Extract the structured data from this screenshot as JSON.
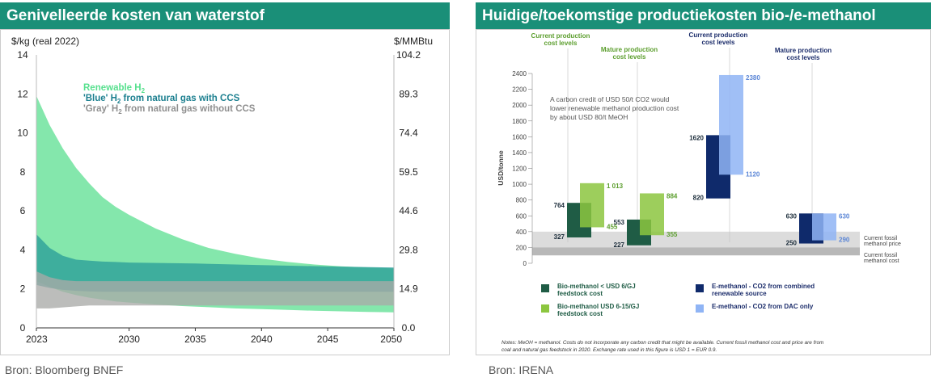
{
  "left_panel": {
    "title": "Genivelleerde kosten van waterstof",
    "source": "Bron: Bloomberg BNEF"
  },
  "right_panel": {
    "title": "Huidige/toekomstige productiekosten bio-/e-methanol",
    "source": "Bron: IRENA"
  },
  "chart_data": [
    {
      "type": "area",
      "title": "Genivelleerde kosten van waterstof",
      "ylabel_left": "$/kg (real 2022)",
      "ylabel_right": "$/MMBtu",
      "ylim": [
        0,
        14
      ],
      "y_ticks_left": [
        "0",
        "2",
        "4",
        "6",
        "8",
        "10",
        "12",
        "14"
      ],
      "y_ticks_right": [
        "0.0",
        "14.9",
        "29.8",
        "44.6",
        "59.5",
        "74.4",
        "89.3",
        "104.2"
      ],
      "x_ticks": [
        "2023",
        "2030",
        "2035",
        "2040",
        "2045",
        "2050"
      ],
      "xlim": [
        2023,
        2050
      ],
      "legend": [
        {
          "label_pre": "Renewable H",
          "sub": "2",
          "label_post": "",
          "color": "#57e08e"
        },
        {
          "label_pre": "'Blue' H",
          "sub": "2",
          "label_post": " from natural gas with CCS",
          "color": "#1b7f8f"
        },
        {
          "label_pre": "'Gray' H",
          "sub": "2",
          "label_post": " from natural gas without CCS",
          "color": "#8f8f8f"
        }
      ],
      "series": [
        {
          "name": "Renewable H2",
          "color": "#6fe39d",
          "x": [
            2023,
            2024,
            2025,
            2026,
            2027,
            2028,
            2029,
            2030,
            2032,
            2034,
            2036,
            2038,
            2040,
            2042,
            2044,
            2046,
            2048,
            2050
          ],
          "high": [
            11.9,
            10.4,
            9.2,
            8.2,
            7.4,
            6.7,
            6.2,
            5.8,
            5.1,
            4.55,
            4.1,
            3.8,
            3.55,
            3.38,
            3.25,
            3.16,
            3.1,
            3.05
          ],
          "low": [
            2.4,
            2.1,
            1.85,
            1.68,
            1.55,
            1.45,
            1.36,
            1.3,
            1.2,
            1.12,
            1.06,
            1.0,
            0.96,
            0.92,
            0.88,
            0.85,
            0.82,
            0.8
          ]
        },
        {
          "name": "'Blue' H2 from natural gas with CCS",
          "color": "#2a9e99",
          "x": [
            2023,
            2024,
            2025,
            2026,
            2027,
            2028,
            2029,
            2030,
            2035,
            2040,
            2045,
            2050
          ],
          "high": [
            4.8,
            4.1,
            3.7,
            3.5,
            3.45,
            3.4,
            3.38,
            3.35,
            3.3,
            3.22,
            3.15,
            3.1
          ],
          "low": [
            2.2,
            2.05,
            1.95,
            1.9,
            1.87,
            1.85,
            1.85,
            1.85,
            1.85,
            1.85,
            1.85,
            1.85
          ]
        },
        {
          "name": "'Gray' H2 from natural gas without CCS",
          "color": "#a9aaa8",
          "x": [
            2023,
            2024,
            2025,
            2026,
            2027,
            2028,
            2029,
            2030,
            2035,
            2040,
            2045,
            2050
          ],
          "high": [
            2.9,
            2.6,
            2.45,
            2.4,
            2.4,
            2.4,
            2.4,
            2.4,
            2.4,
            2.4,
            2.4,
            2.4
          ],
          "low": [
            1.0,
            1.0,
            1.05,
            1.1,
            1.15,
            1.15,
            1.15,
            1.15,
            1.15,
            1.15,
            1.15,
            1.15
          ]
        }
      ]
    },
    {
      "type": "bar",
      "title": "Huidige/toekomstige productiekosten bio-/e-methanol",
      "ylabel": "USD/tonne",
      "ylim": [
        0,
        2400
      ],
      "y_ticks": [
        "0",
        "200",
        "400",
        "600",
        "800",
        "1000",
        "1200",
        "1400",
        "1600",
        "1800",
        "2000",
        "2200",
        "2400"
      ],
      "group_labels": [
        {
          "text": [
            "Current production",
            "cost levels"
          ]
        },
        {
          "text": [
            "Mature production",
            "cost levels"
          ]
        },
        {
          "text": [
            "Current production",
            "cost levels"
          ]
        },
        {
          "text": [
            "Mature production",
            "cost levels"
          ]
        }
      ],
      "note_text": [
        "A carbon credit of USD 50/t CO2 would",
        "lower renewable methanol production cost",
        "by about USD 80/t MeOH"
      ],
      "ranges": [
        {
          "series": "Bio-methanol < USD 6/GJ feedstock cost",
          "group": "bio-current",
          "low": 327,
          "high": 764,
          "low_label": "327",
          "high_label": "764",
          "color": "#1f5c45"
        },
        {
          "series": "Bio-methanol USD 6-15/GJ feedstock cost",
          "group": "bio-current",
          "low": 455,
          "high": 1013,
          "low_label": "455",
          "high_label": "1 013",
          "color": "#8cc63f"
        },
        {
          "series": "Bio-methanol < USD 6/GJ feedstock cost",
          "group": "bio-mature",
          "low": 227,
          "high": 553,
          "low_label": "227",
          "high_label": "553",
          "color": "#1f5c45"
        },
        {
          "series": "Bio-methanol USD 6-15/GJ feedstock cost",
          "group": "bio-mature",
          "low": 355,
          "high": 884,
          "low_label": "355",
          "high_label": "884",
          "color": "#8cc63f"
        },
        {
          "series": "E-methanol - CO2 from combined renewable source",
          "group": "e-current",
          "low": 820,
          "high": 1620,
          "low_label": "820",
          "high_label": "1620",
          "color": "#0f2a6b"
        },
        {
          "series": "E-methanol - CO2 from DAC only",
          "group": "e-current",
          "low": 1120,
          "high": 2380,
          "low_label": "1120",
          "high_label": "2380",
          "color": "#8fb4f5"
        },
        {
          "series": "E-methanol - CO2 from combined renewable source",
          "group": "e-mature",
          "low": 250,
          "high": 630,
          "low_label": "250",
          "high_label": "630",
          "color": "#0f2a6b"
        },
        {
          "series": "E-methanol - CO2 from DAC only",
          "group": "e-mature",
          "low": 290,
          "high": 630,
          "low_label": "290",
          "high_label": "630",
          "color": "#8fb4f5"
        }
      ],
      "reference_bands": [
        {
          "label": [
            "Current fossil",
            "methanol price"
          ],
          "low": 150,
          "high": 400,
          "color": "#dcdcdc"
        },
        {
          "label": [
            "Current fossil",
            "methanol cost"
          ],
          "low": 100,
          "high": 200,
          "color": "#b8b8b8"
        }
      ],
      "legend": [
        {
          "text": [
            "Bio-methanol < USD 6/GJ",
            "feedstock cost"
          ],
          "color": "#1f5c45"
        },
        {
          "text": [
            "Bio-methanol USD 6-15/GJ",
            "feedstock cost"
          ],
          "color": "#8cc63f"
        },
        {
          "text": [
            "E-methanol - CO2 from combined",
            "renewable source"
          ],
          "color": "#0f2a6b"
        },
        {
          "text": [
            "E-methanol - CO2 from DAC only"
          ],
          "color": "#8fb4f5"
        }
      ],
      "notes": [
        "Notes: MeOH = methanol. Costs do not incorporate any carbon credit that might be available. Current fossil methanol cost and price are from",
        "coal and natural gas feedstock in 2020. Exchange rate used in this figure is USD 1 = EUR 0.9."
      ]
    }
  ]
}
